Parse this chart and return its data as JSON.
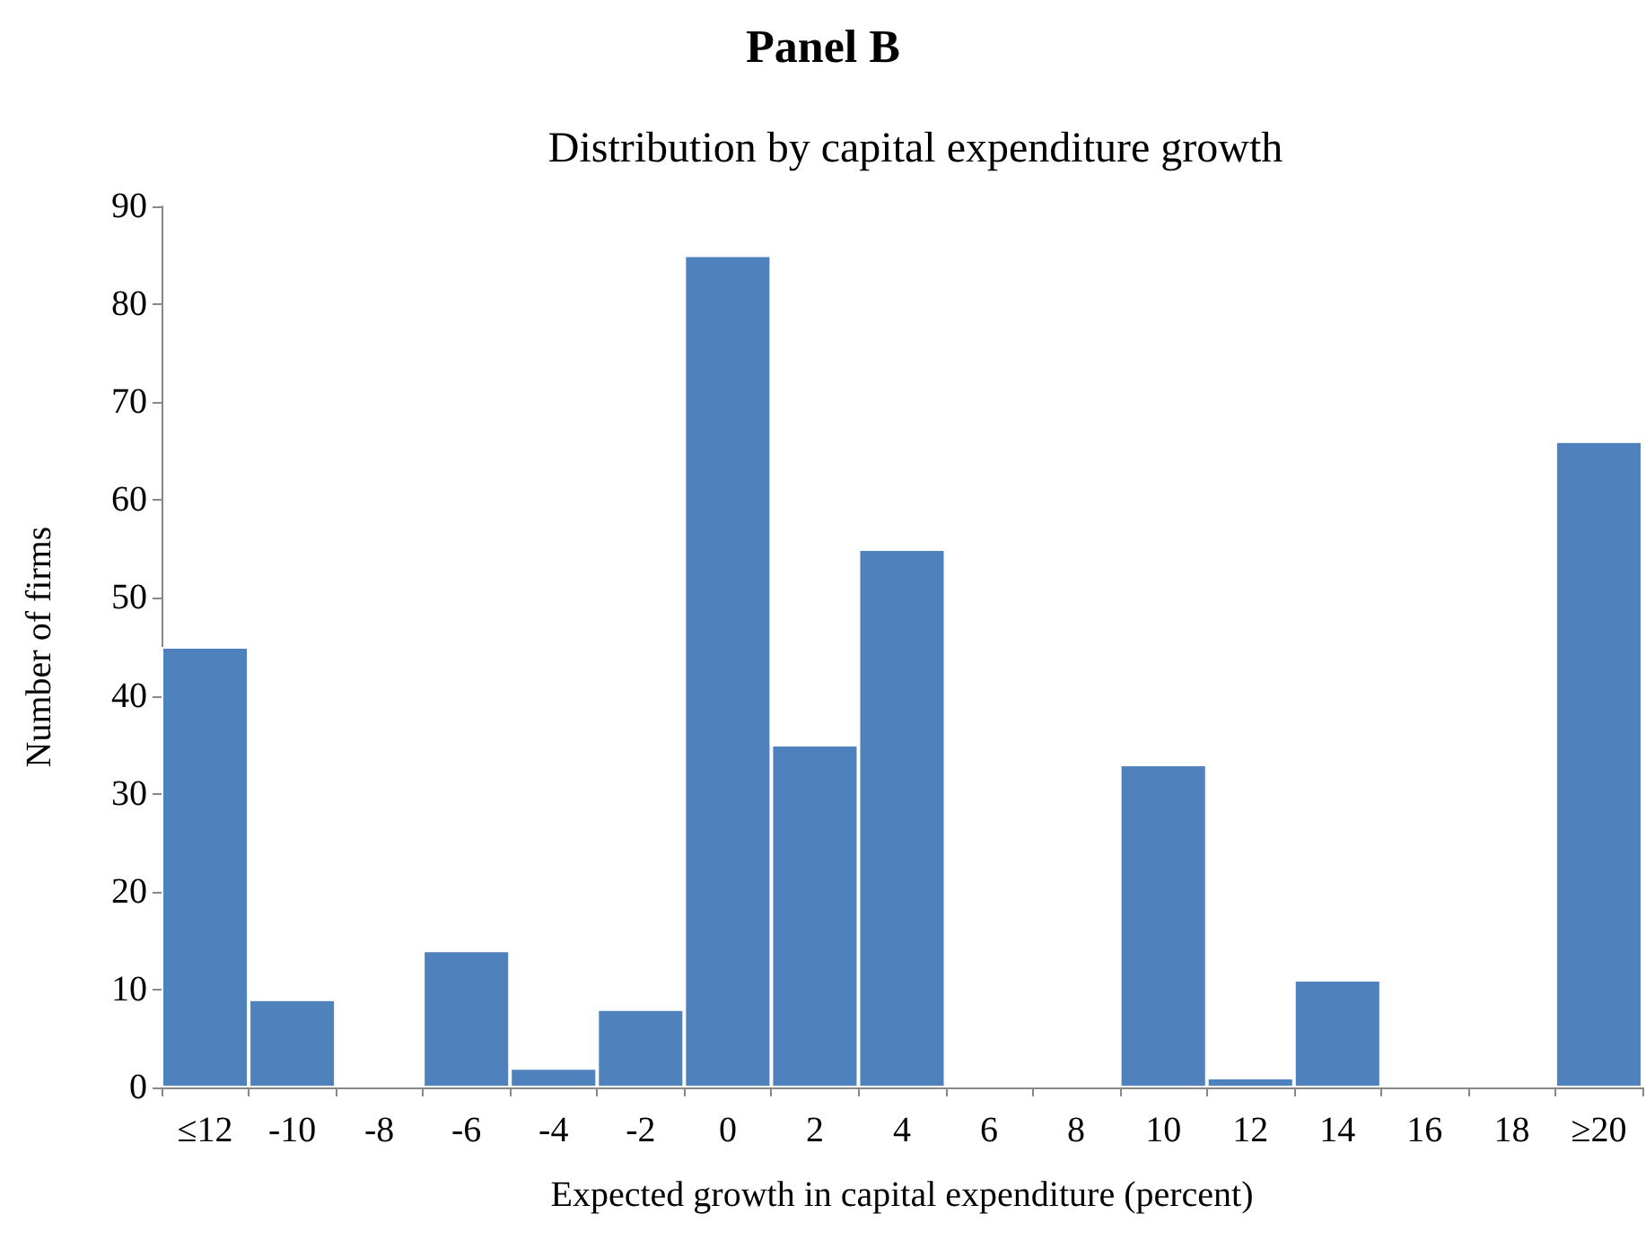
{
  "chart_data": {
    "type": "bar",
    "title": "Panel B",
    "subtitle": "Distribution by capital expenditure growth",
    "xlabel": "Expected growth in capital expenditure (percent)",
    "ylabel": "Number of firms",
    "categories": [
      "≤12",
      "-10",
      "-8",
      "-6",
      "-4",
      "-2",
      "0",
      "2",
      "4",
      "6",
      "8",
      "10",
      "12",
      "14",
      "16",
      "18",
      "≥20"
    ],
    "values": [
      45,
      9,
      0,
      14,
      2,
      8,
      85,
      35,
      55,
      0,
      0,
      33,
      1,
      11,
      0,
      0,
      66
    ],
    "color": "#4f81bd",
    "ylim": [
      0,
      90
    ],
    "yticks": [
      0,
      10,
      20,
      30,
      40,
      50,
      60,
      70,
      80,
      90
    ],
    "grid": false
  }
}
